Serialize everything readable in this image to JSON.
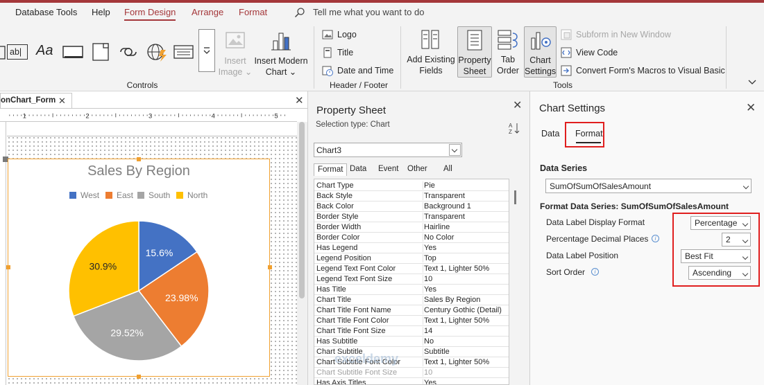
{
  "tabs": [
    "Database Tools",
    "Help",
    "Form Design",
    "Arrange",
    "Format"
  ],
  "active_tab": "Form Design",
  "tell_me": "Tell me what you want to do",
  "ribbon": {
    "controls_group": "Controls",
    "insert_image": [
      "Insert",
      "Image"
    ],
    "insert_modern_chart": [
      "Insert Modern",
      "Chart"
    ],
    "logo": "Logo",
    "title": "Title",
    "date_and_time": "Date and Time",
    "header_footer_group": "Header / Footer",
    "add_existing_fields": [
      "Add Existing",
      "Fields"
    ],
    "property_sheet": [
      "Property",
      "Sheet"
    ],
    "tab_order": [
      "Tab",
      "Order"
    ],
    "chart_settings": [
      "Chart",
      "Settings"
    ],
    "subform_in_new_window": "Subform in New Window",
    "view_code": "View Code",
    "convert_macros": "Convert Form's Macros to Visual Basic",
    "tools_group": "Tools",
    "text_box_glyph": "ab|",
    "label_glyph": "Aa"
  },
  "document_tab": "onChart_Form",
  "ruler_marks": [
    "1",
    "2",
    "3",
    "4",
    "5"
  ],
  "chart_data": {
    "type": "pie",
    "title": "Sales By Region",
    "series": [
      {
        "name": "West",
        "value": 15.6,
        "label": "15.6%",
        "color": "#4472c4"
      },
      {
        "name": "East",
        "value": 23.98,
        "label": "23.98%",
        "color": "#ed7d31"
      },
      {
        "name": "South",
        "value": 29.52,
        "label": "29.52%",
        "color": "#a5a5a5"
      },
      {
        "name": "North",
        "value": 30.9,
        "label": "30.9%",
        "color": "#ffc000"
      }
    ],
    "legend_position": "top"
  },
  "property_sheet": {
    "title": "Property Sheet",
    "selection_type": "Selection type:  Chart",
    "selected_object": "Chart3",
    "tabs": [
      "Format",
      "Data",
      "Event",
      "Other",
      "All"
    ],
    "active_tab": "Format",
    "properties": [
      [
        "Chart Type",
        "Pie"
      ],
      [
        "Back Style",
        "Transparent"
      ],
      [
        "Back Color",
        "Background 1"
      ],
      [
        "Border Style",
        "Transparent"
      ],
      [
        "Border Width",
        "Hairline"
      ],
      [
        "Border Color",
        "No Color"
      ],
      [
        "Has Legend",
        "Yes"
      ],
      [
        "Legend Position",
        "Top"
      ],
      [
        "Legend Text Font Color",
        "Text 1, Lighter 50%"
      ],
      [
        "Legend Text Font Size",
        "10"
      ],
      [
        "Has Title",
        "Yes"
      ],
      [
        "Chart Title",
        "Sales By Region"
      ],
      [
        "Chart Title Font Name",
        "Century Gothic (Detail)"
      ],
      [
        "Chart Title Font Color",
        "Text 1, Lighter 50%"
      ],
      [
        "Chart Title Font Size",
        "14"
      ],
      [
        "Has Subtitle",
        "No"
      ],
      [
        "Chart Subtitle",
        "Subtitle"
      ],
      [
        "Chart Subtitle Font Color",
        "Text 1, Lighter 50%"
      ],
      [
        "Chart Subtitle Font Size",
        "10"
      ],
      [
        "Has Axis Titles",
        "Yes"
      ]
    ]
  },
  "chart_settings": {
    "title": "Chart Settings",
    "tab_data": "Data",
    "tab_format": "Format",
    "data_series_label": "Data Series",
    "data_series_value": "SumOfSumOfSalesAmount",
    "format_data_series_label": "Format Data Series: SumOfSumOfSalesAmount",
    "label_display_format": "Data Label Display Format",
    "label_display_format_value": "Percentage",
    "percentage_decimal_places": "Percentage Decimal Places",
    "percentage_decimal_places_value": "2",
    "label_position": "Data Label Position",
    "label_position_value": "Best Fit",
    "sort_order": "Sort Order",
    "sort_order_value": "Ascending"
  },
  "watermark": "exceldemy"
}
